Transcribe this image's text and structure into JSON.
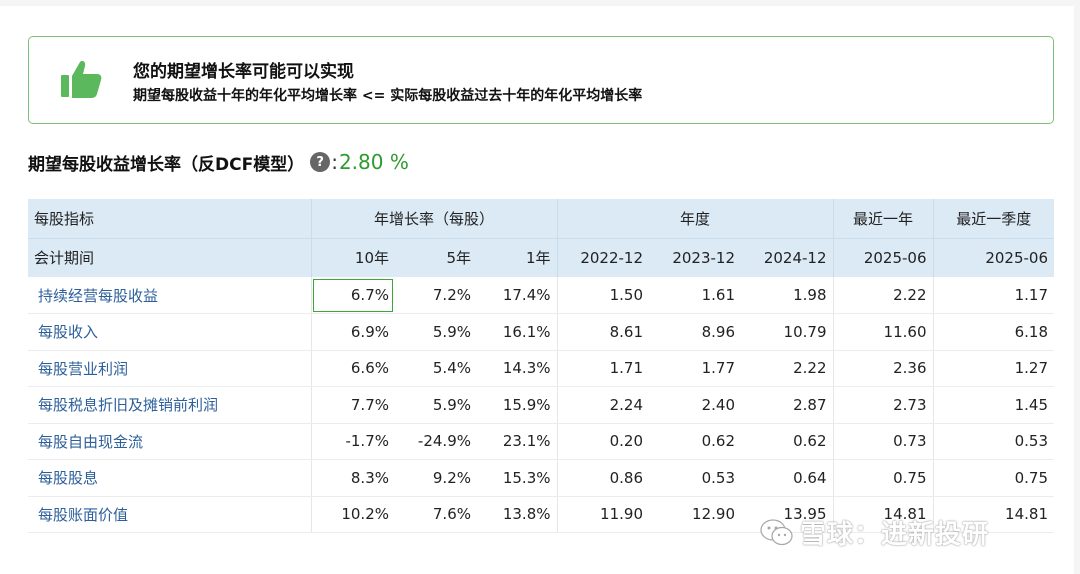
{
  "alert": {
    "title": "您的期望增长率可能可以实现",
    "subtitle": "期望每股收益十年的年化平均增长率 <= 实际每股收益过去十年的年化平均增长率",
    "icon": "thumbs-up-icon",
    "color": "#7cc27c"
  },
  "expected_rate": {
    "label": "期望每股收益增长率（反DCF模型）",
    "help": "?",
    "colon": ":",
    "value": "2.80 %",
    "value_color": "#2e9b2e"
  },
  "table": {
    "header1": {
      "indicator": "每股指标",
      "growth_group": "年增长率（每股）",
      "annual_group": "年度",
      "ttm_group": "最近一年",
      "quarter_group": "最近一季度"
    },
    "header2": [
      "会计期间",
      "10年",
      "5年",
      "1年",
      "2022-12",
      "2023-12",
      "2024-12",
      "2025-06",
      "2025-06"
    ],
    "rows": [
      {
        "name": "持续经营每股收益",
        "cells": [
          "6.7%",
          "7.2%",
          "17.4%",
          "1.50",
          "1.61",
          "1.98",
          "2.22",
          "1.17"
        ]
      },
      {
        "name": "每股收入",
        "cells": [
          "6.9%",
          "5.9%",
          "16.1%",
          "8.61",
          "8.96",
          "10.79",
          "11.60",
          "6.18"
        ]
      },
      {
        "name": "每股营业利润",
        "cells": [
          "6.6%",
          "5.4%",
          "14.3%",
          "1.71",
          "1.77",
          "2.22",
          "2.36",
          "1.27"
        ]
      },
      {
        "name": "每股税息折旧及摊销前利润",
        "cells": [
          "7.7%",
          "5.9%",
          "15.9%",
          "2.24",
          "2.40",
          "2.87",
          "2.73",
          "1.45"
        ]
      },
      {
        "name": "每股自由现金流",
        "cells": [
          "-1.7%",
          "-24.9%",
          "23.1%",
          "0.20",
          "0.62",
          "0.62",
          "0.73",
          "0.53"
        ]
      },
      {
        "name": "每股股息",
        "cells": [
          "8.3%",
          "9.2%",
          "15.3%",
          "0.86",
          "0.53",
          "0.64",
          "0.75",
          "0.75"
        ]
      },
      {
        "name": "每股账面价值",
        "cells": [
          "10.2%",
          "7.6%",
          "13.8%",
          "11.90",
          "12.90",
          "13.95",
          "14.81",
          "14.81"
        ]
      }
    ]
  },
  "watermark": {
    "icon": "wechat-icon",
    "text": "雪球：进新投研"
  }
}
